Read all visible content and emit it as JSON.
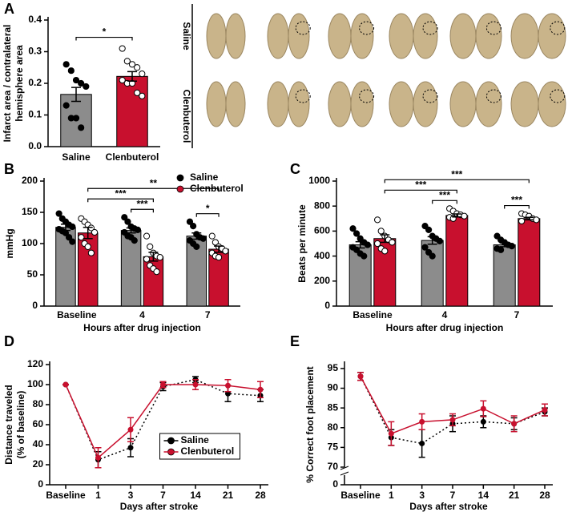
{
  "images": {
    "rows": [
      "Saline",
      "Clenbuterol"
    ]
  },
  "chart_data": [
    {
      "type": "bar",
      "label": "A",
      "ylabel": [
        "Infarct area / contralateral",
        "hemisphere area"
      ],
      "categories": [
        "Saline",
        "Clenbuterol"
      ],
      "values": [
        0.165,
        0.222
      ],
      "errors": [
        0.022,
        0.015
      ],
      "colors": [
        "#8c8c8c",
        "#c8102e"
      ],
      "points": [
        [
          0.26,
          0.24,
          0.21,
          0.2,
          0.19,
          0.13,
          0.09,
          0.09,
          0.06
        ],
        [
          0.31,
          0.27,
          0.26,
          0.25,
          0.23,
          0.21,
          0.2,
          0.2,
          0.17,
          0.16
        ]
      ],
      "ylim": [
        0,
        0.4
      ],
      "yticks": [
        {
          "value": 0,
          "label": "0.0"
        },
        0.1,
        0.2,
        0.3,
        0.4
      ],
      "brackets": [
        {
          "from": 0,
          "to": 1,
          "text": "*"
        }
      ]
    },
    {
      "type": "grouped_bar",
      "label": "B",
      "ylabel": [
        "mmHg"
      ],
      "xlabel": "Hours after drug injection",
      "categories": [
        "Baseline",
        "4",
        "7"
      ],
      "legend": "upper right",
      "series": [
        {
          "name": "Saline",
          "color": "#8c8c8c",
          "marker": "#000000",
          "values": [
            126,
            121,
            112
          ],
          "errors": [
            5,
            4,
            5
          ],
          "points": [
            [
              148,
              140,
              135,
              130,
              127,
              123,
              120,
              117,
              110,
              103
            ],
            [
              142,
              135,
              127,
              124,
              122,
              118,
              112,
              110,
              105
            ],
            [
              135,
              128,
              115,
              110,
              108,
              105,
              100,
              95
            ]
          ]
        },
        {
          "name": "Clenbuterol",
          "color": "#c8102e",
          "marker": "#c8102e",
          "values": [
            117,
            79,
            91
          ],
          "errors": [
            9,
            7,
            5
          ],
          "points": [
            [
              140,
              135,
              130,
              125,
              118,
              110,
              100,
              95,
              85
            ],
            [
              112,
              95,
              85,
              80,
              78,
              75,
              65,
              60,
              55
            ],
            [
              112,
              102,
              95,
              92,
              88,
              85,
              80,
              78
            ]
          ]
        }
      ],
      "ylim": [
        0,
        200
      ],
      "yticks": [
        0,
        50,
        100,
        150,
        200
      ],
      "brackets": [
        {
          "from": [
            0,
            1
          ],
          "to": [
            1,
            1
          ],
          "text": "***"
        },
        {
          "from": [
            0,
            2
          ],
          "to": [
            1,
            2
          ],
          "text": "*"
        },
        {
          "from": [
            1,
            0
          ],
          "to": [
            1,
            1
          ],
          "text": "***"
        },
        {
          "from": [
            1,
            0
          ],
          "to": [
            1,
            2
          ],
          "text": "**"
        }
      ]
    },
    {
      "type": "grouped_bar",
      "label": "C",
      "ylabel": [
        "Beats per minute"
      ],
      "xlabel": "Hours after drug injection",
      "categories": [
        "Baseline",
        "4",
        "7"
      ],
      "series": [
        {
          "color": "#8c8c8c",
          "marker": "#000000",
          "values": [
            490,
            525,
            490
          ],
          "errors": [
            25,
            30,
            15
          ],
          "points": [
            [
              620,
              580,
              540,
              510,
              490,
              470,
              450,
              420,
              400
            ],
            [
              640,
              610,
              560,
              540,
              520,
              470,
              430,
              400
            ],
            [
              560,
              530,
              510,
              490,
              480,
              460,
              450
            ]
          ]
        },
        {
          "color": "#c8102e",
          "marker": "#c8102e",
          "values": [
            540,
            725,
            700
          ],
          "errors": [
            30,
            12,
            10
          ],
          "points": [
            [
              690,
              600,
              560,
              530,
              510,
              500,
              460,
              440
            ],
            [
              780,
              760,
              740,
              730,
              720,
              710,
              700
            ],
            [
              740,
              730,
              720,
              700,
              690,
              680
            ]
          ]
        }
      ],
      "ylim": [
        0,
        1000
      ],
      "yticks": [
        0,
        200,
        400,
        600,
        800,
        1000
      ],
      "brackets": [
        {
          "from": [
            0,
            1
          ],
          "to": [
            1,
            1
          ],
          "text": "***"
        },
        {
          "from": [
            0,
            2
          ],
          "to": [
            1,
            2
          ],
          "text": "***"
        },
        {
          "from": [
            1,
            0
          ],
          "to": [
            1,
            1
          ],
          "text": "***"
        },
        {
          "from": [
            1,
            0
          ],
          "to": [
            1,
            2
          ],
          "text": "***"
        }
      ]
    },
    {
      "type": "line",
      "label": "D",
      "ylabel": [
        "Distance traveled",
        "(% of baseline)"
      ],
      "xlabel": "Days after stroke",
      "categories": [
        "Baseline",
        "1",
        "3",
        "7",
        "14",
        "21",
        "28"
      ],
      "legend": "center",
      "series": [
        {
          "name": "Saline",
          "color": "#000000",
          "dashed": true,
          "values": [
            100,
            25,
            37,
            98,
            105,
            91,
            89
          ],
          "errors": [
            0,
            8,
            9,
            4,
            3,
            8,
            6
          ]
        },
        {
          "name": "Clenbuterol",
          "color": "#c8102e",
          "dashed": false,
          "values": [
            100,
            27,
            55,
            100,
            100,
            99,
            95
          ],
          "errors": [
            0,
            10,
            12,
            3,
            5,
            6,
            8
          ]
        }
      ],
      "ylim": [
        0,
        120
      ],
      "yticks": [
        0,
        20,
        40,
        60,
        80,
        100,
        120
      ]
    },
    {
      "type": "line",
      "label": "E",
      "ylabel": [
        "% Correct foot placement"
      ],
      "xlabel": "Days after stroke",
      "categories": [
        "Baseline",
        "1",
        "3",
        "7",
        "14",
        "21",
        "28"
      ],
      "series": [
        {
          "color": "#000000",
          "dashed": true,
          "values": [
            93,
            77.5,
            76,
            81,
            81.5,
            81,
            84
          ],
          "errors": [
            1,
            2,
            3.5,
            2,
            1.5,
            1.5,
            1
          ]
        },
        {
          "color": "#c8102e",
          "dashed": false,
          "values": [
            93,
            78.5,
            81.5,
            82,
            84.8,
            81,
            84.5
          ],
          "errors": [
            1,
            3,
            2,
            1.5,
            2,
            2,
            1.5
          ]
        }
      ],
      "ylim": [
        70,
        96
      ],
      "yticks": [
        70,
        75,
        80,
        85,
        90,
        95
      ],
      "break_tick": 0
    }
  ]
}
